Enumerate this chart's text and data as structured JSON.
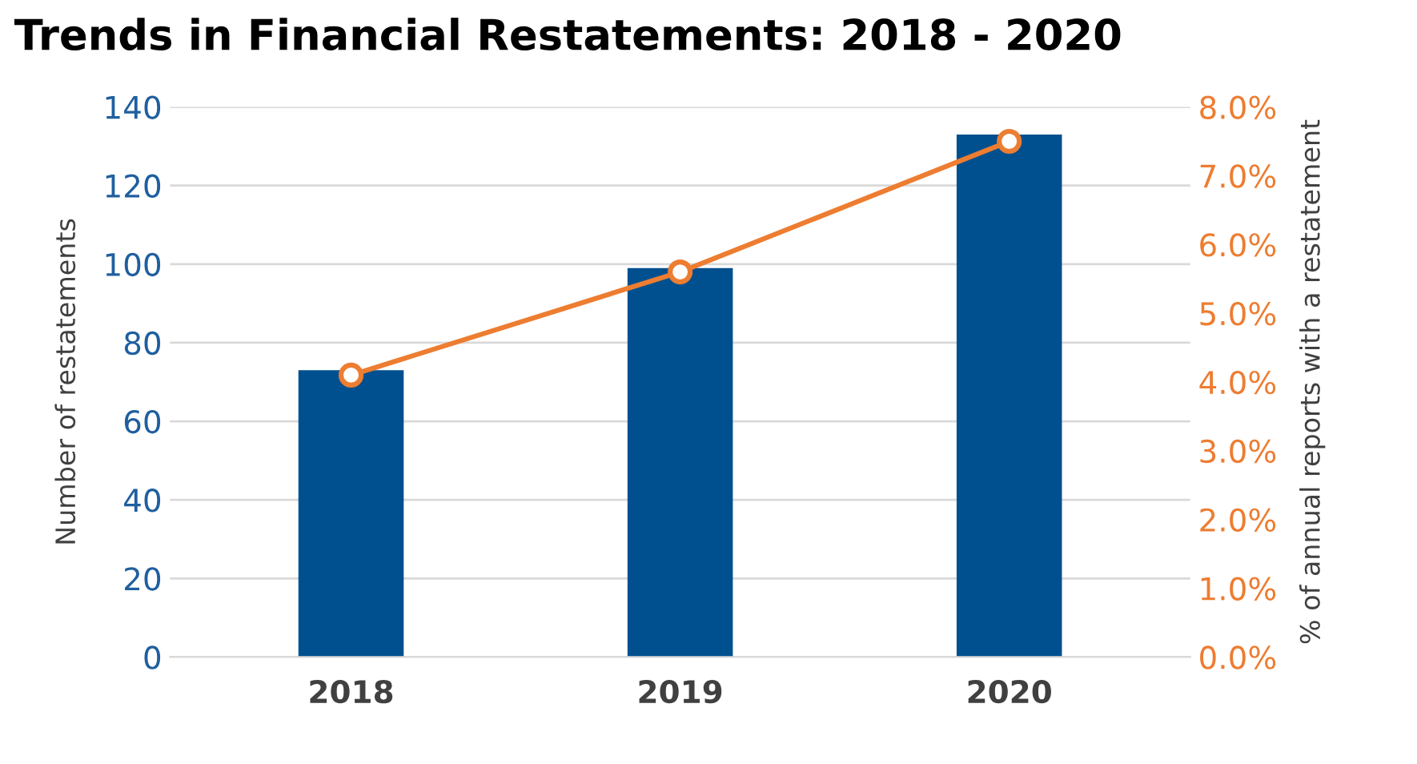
{
  "chart_data": {
    "type": "bar",
    "title": "Trends in Financial Restatements: 2018 - 2020",
    "categories": [
      "2018",
      "2019",
      "2020"
    ],
    "ylabel": "Number of restatements",
    "y2label": "% of annual reports with a restatement",
    "series": [
      {
        "color": "#00508f",
        "values": [
          73,
          99,
          133
        ]
      },
      {
        "type": "line",
        "axis": "y2",
        "color": "#ed7d31",
        "marker": "circle",
        "values": [
          4.1,
          5.6,
          7.5
        ]
      }
    ],
    "ylim": [
      0,
      140
    ],
    "yticks": [
      0,
      20,
      40,
      60,
      80,
      100,
      120,
      140
    ],
    "y2lim": [
      0,
      8
    ],
    "y2ticks": [
      {
        "value": 0,
        "label": "0.0%"
      },
      {
        "value": 1,
        "label": "1.0%"
      },
      {
        "value": 2,
        "label": "2.0%"
      },
      {
        "value": 3,
        "label": "3.0%"
      },
      {
        "value": 4,
        "label": "4.0%"
      },
      {
        "value": 5,
        "label": "5.0%"
      },
      {
        "value": 6,
        "label": "6.0%"
      },
      {
        "value": 7,
        "label": "7.0%"
      },
      {
        "value": 8,
        "label": "8.0%"
      }
    ],
    "grid": "y"
  }
}
